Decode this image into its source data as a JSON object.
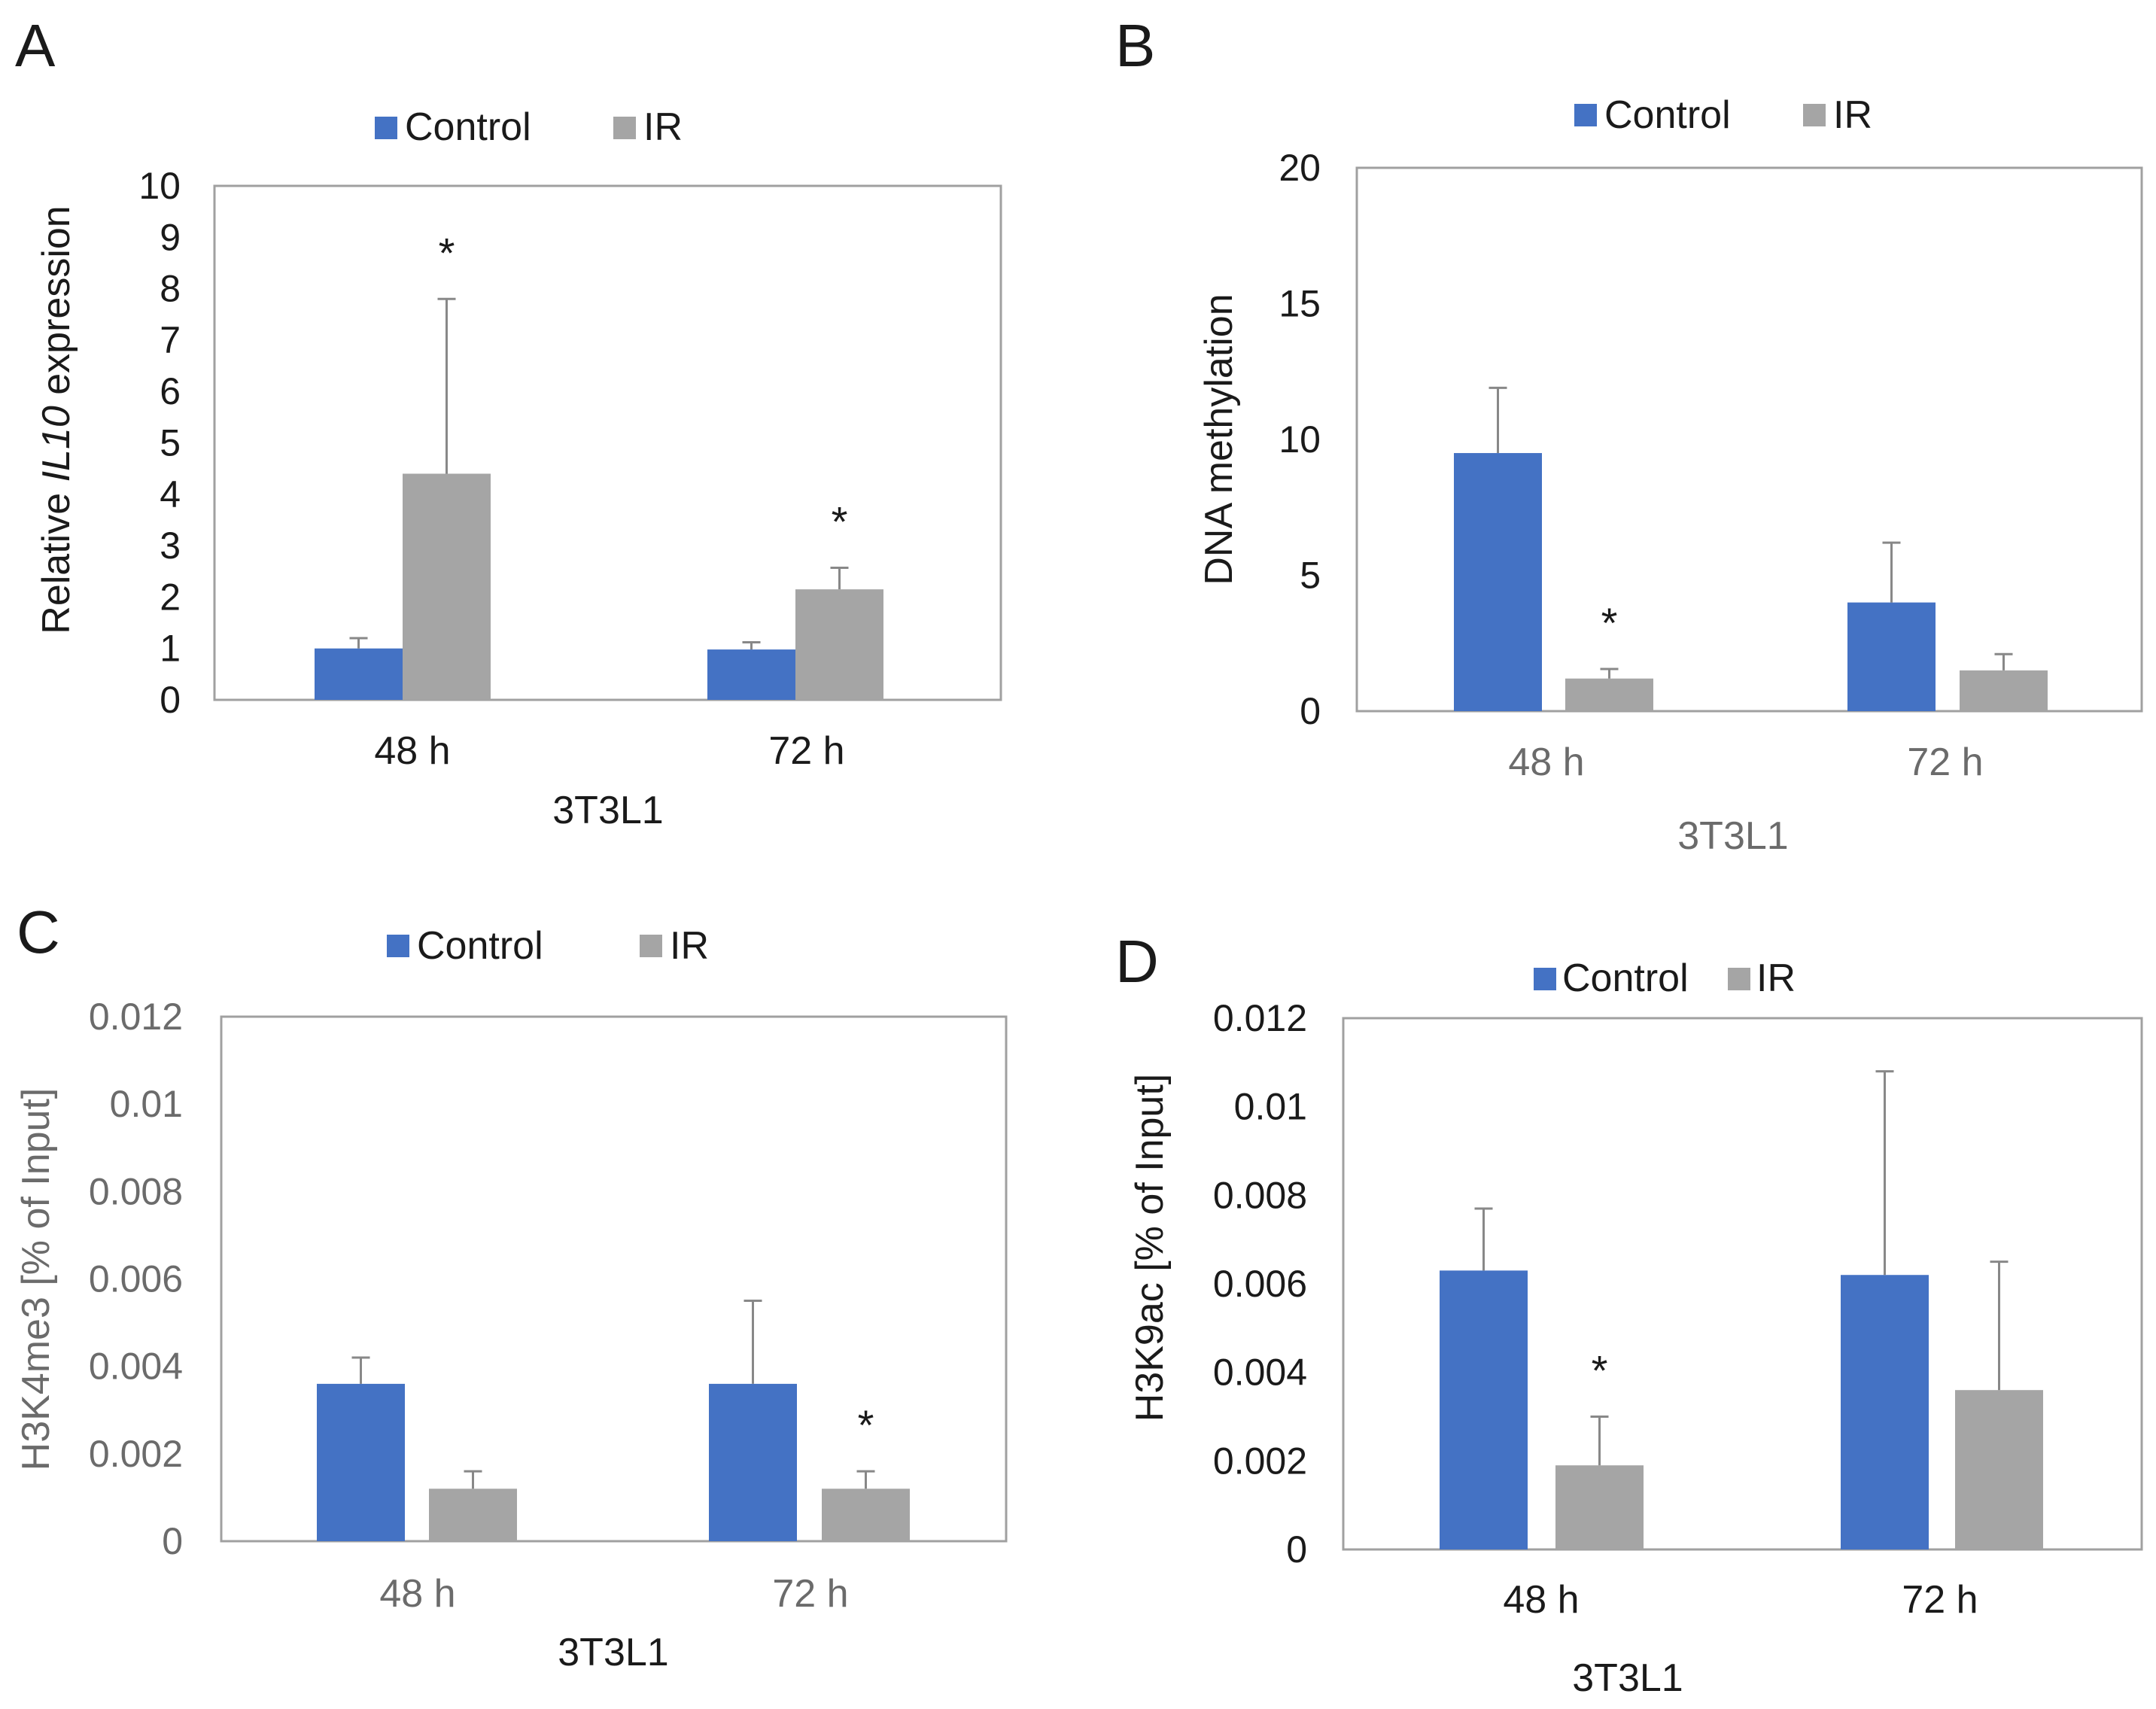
{
  "figure": {
    "colors": {
      "control": "#4472C4",
      "ir": "#A5A5A5",
      "axis_black": "#1a1a1a",
      "axis_gray": "#6b6b6b",
      "frame": "#a0a0a0"
    }
  },
  "chart_data": [
    {
      "panel": "A",
      "type": "bar",
      "title": "",
      "ylabel_prefix": "Relative ",
      "ylabel_italic": "IL10",
      "ylabel_suffix": " expression",
      "xlabel": "3T3L1",
      "categories": [
        "48 h",
        "72 h"
      ],
      "series": [
        {
          "name": "Control",
          "values": [
            1.0,
            0.98
          ],
          "errors": [
            0.2,
            0.14
          ]
        },
        {
          "name": "IR",
          "values": [
            4.4,
            2.15
          ],
          "errors": [
            3.4,
            0.42
          ]
        }
      ],
      "significance": [
        {
          "series": "IR",
          "category": "48 h",
          "label": "*"
        },
        {
          "series": "IR",
          "category": "72 h",
          "label": "*"
        }
      ],
      "ylim": [
        0,
        10
      ],
      "yticks": [
        0,
        1,
        2,
        3,
        4,
        5,
        6,
        7,
        8,
        9,
        10
      ],
      "ytick_labels": [
        "0",
        "1",
        "2",
        "3",
        "4",
        "5",
        "6",
        "7",
        "8",
        "9",
        "10"
      ],
      "legend": "top-center",
      "grid": false
    },
    {
      "panel": "B",
      "type": "bar",
      "title": "",
      "ylabel": "DNA methylation",
      "xlabel": "3T3L1",
      "categories": [
        "48 h",
        "72 h"
      ],
      "series": [
        {
          "name": "Control",
          "values": [
            9.5,
            4.0
          ],
          "errors": [
            2.4,
            2.2
          ]
        },
        {
          "name": "IR",
          "values": [
            1.2,
            1.5
          ],
          "errors": [
            0.35,
            0.6
          ]
        }
      ],
      "significance": [
        {
          "series": "IR",
          "category": "48 h",
          "label": "*"
        }
      ],
      "ylim": [
        0,
        20
      ],
      "yticks": [
        0,
        5,
        10,
        15,
        20
      ],
      "ytick_labels": [
        "0",
        "5",
        "10",
        "15",
        "20"
      ],
      "legend": "top-center",
      "grid": false
    },
    {
      "panel": "C",
      "type": "bar",
      "title": "",
      "ylabel": "H3K4me3 [% of Input]",
      "xlabel": "3T3L1",
      "categories": [
        "48 h",
        "72 h"
      ],
      "series": [
        {
          "name": "Control",
          "values": [
            0.0036,
            0.0036
          ],
          "errors": [
            0.0006,
            0.0019
          ]
        },
        {
          "name": "IR",
          "values": [
            0.0012,
            0.0012
          ],
          "errors": [
            0.0004,
            0.0004
          ]
        }
      ],
      "significance": [
        {
          "series": "IR",
          "category": "72 h",
          "label": "*"
        }
      ],
      "ylim": [
        0,
        0.012
      ],
      "yticks": [
        0,
        0.002,
        0.004,
        0.006,
        0.008,
        0.01,
        0.012
      ],
      "ytick_labels": [
        "0",
        "0.002",
        "0.004",
        "0.006",
        "0.008",
        "0.01",
        "0.012"
      ],
      "legend": "top-center",
      "grid": false
    },
    {
      "panel": "D",
      "type": "bar",
      "title": "",
      "ylabel": "H3K9ac [% of Input]",
      "xlabel": "3T3L1",
      "categories": [
        "48 h",
        "72 h"
      ],
      "series": [
        {
          "name": "Control",
          "values": [
            0.0063,
            0.0062
          ],
          "errors": [
            0.0014,
            0.0046
          ]
        },
        {
          "name": "IR",
          "values": [
            0.0019,
            0.0036
          ],
          "errors": [
            0.0011,
            0.0029
          ]
        }
      ],
      "significance": [
        {
          "series": "IR",
          "category": "48 h",
          "label": "*"
        }
      ],
      "ylim": [
        0,
        0.012
      ],
      "yticks": [
        0,
        0.002,
        0.004,
        0.006,
        0.008,
        0.01,
        0.012
      ],
      "ytick_labels": [
        "0",
        "0.002",
        "0.004",
        "0.006",
        "0.008",
        "0.01",
        "0.012"
      ],
      "legend": "top-center",
      "grid": false
    }
  ]
}
